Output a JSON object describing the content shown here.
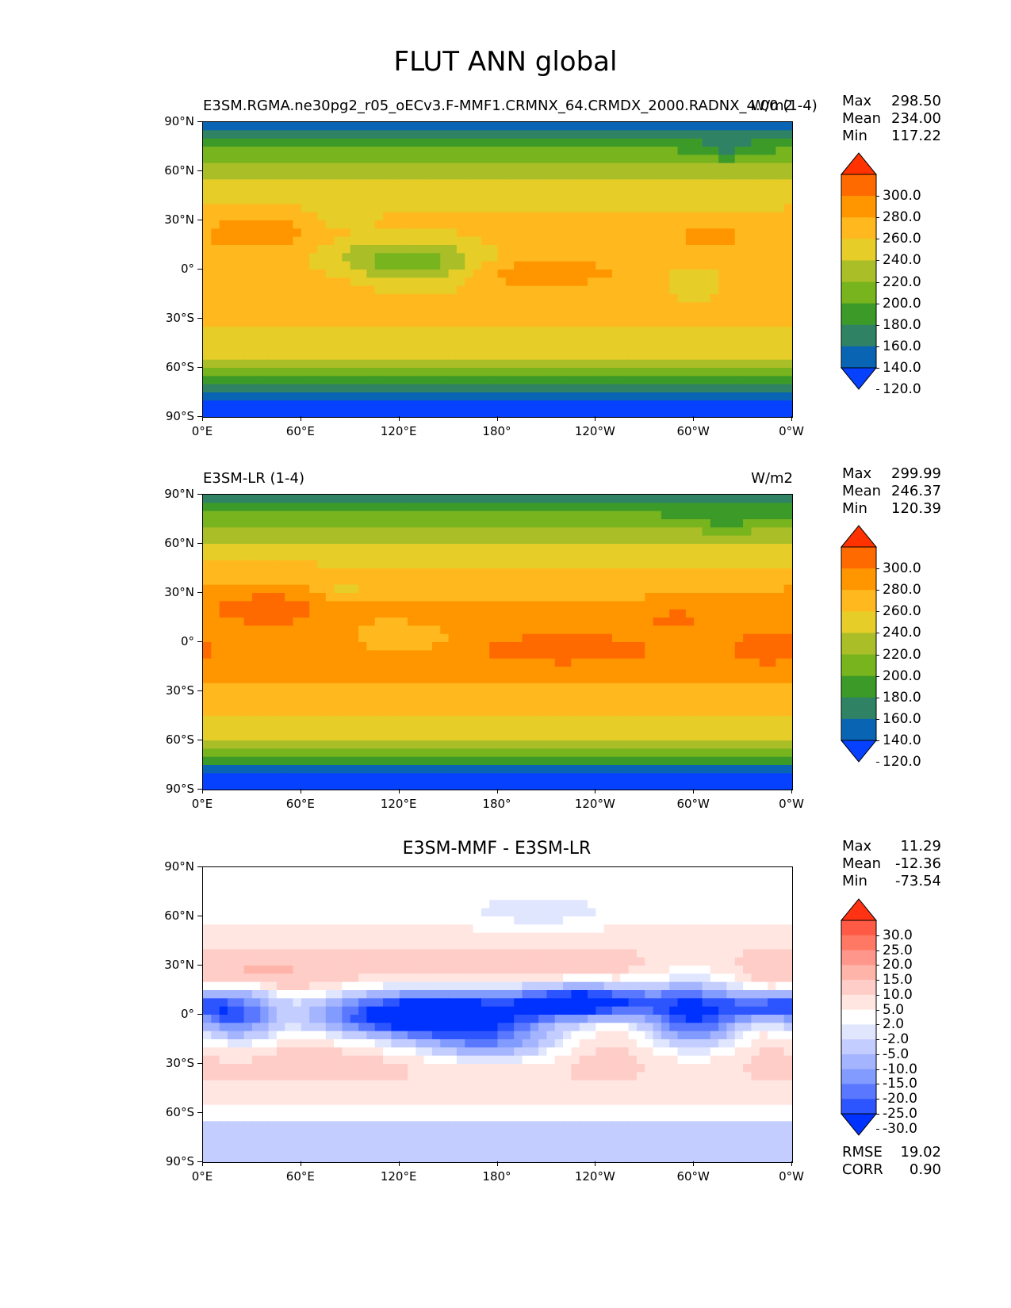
{
  "figure_title": "FLUT ANN global",
  "chart_data": [
    {
      "type": "heatmap",
      "panel": "test",
      "title_left": "E3SM.RGMA.ne30pg2_r05_oECv3.F-MMF1.CRMNX_64.CRMDX_2000.RADNX_4.00 (1-4)",
      "title_right": "W/m2",
      "stats": {
        "max_label": "Max",
        "max": "298.50",
        "mean_label": "Mean",
        "mean": "234.00",
        "min_label": "Min",
        "min": "117.22"
      },
      "colorbar_levels": [
        "300.0",
        "280.0",
        "260.0",
        "240.0",
        "220.0",
        "200.0",
        "180.0",
        "160.0",
        "140.0",
        "120.0"
      ],
      "colorbar_colors": [
        "#ff3200",
        "#ff6a00",
        "#ff9600",
        "#ffb91e",
        "#e6cd28",
        "#aabe28",
        "#78b41e",
        "#3c9b28",
        "#2f8264",
        "#0a64b4",
        "#0541ff"
      ],
      "xlabel": "",
      "ylabel": "",
      "xticks": [
        "0°E",
        "60°E",
        "120°E",
        "180°",
        "120°W",
        "60°W",
        "0°W"
      ],
      "yticks": [
        "90°N",
        "60°N",
        "30°N",
        "0°",
        "30°S",
        "60°S",
        "90°S"
      ],
      "xlim": [
        0,
        360
      ],
      "ylim": [
        -90,
        90
      ],
      "field": "flut_test"
    },
    {
      "type": "heatmap",
      "panel": "reference",
      "title_left": "E3SM-LR (1-4)",
      "title_right": "W/m2",
      "stats": {
        "max_label": "Max",
        "max": "299.99",
        "mean_label": "Mean",
        "mean": "246.37",
        "min_label": "Min",
        "min": "120.39"
      },
      "colorbar_levels": [
        "300.0",
        "280.0",
        "260.0",
        "240.0",
        "220.0",
        "200.0",
        "180.0",
        "160.0",
        "140.0",
        "120.0"
      ],
      "colorbar_colors": [
        "#ff3200",
        "#ff6a00",
        "#ff9600",
        "#ffb91e",
        "#e6cd28",
        "#aabe28",
        "#78b41e",
        "#3c9b28",
        "#2f8264",
        "#0a64b4",
        "#0541ff"
      ],
      "xlabel": "",
      "ylabel": "",
      "xticks": [
        "0°E",
        "60°E",
        "120°E",
        "180°",
        "120°W",
        "60°W",
        "0°W"
      ],
      "yticks": [
        "90°N",
        "60°N",
        "30°N",
        "0°",
        "30°S",
        "60°S",
        "90°S"
      ],
      "xlim": [
        0,
        360
      ],
      "ylim": [
        -90,
        90
      ],
      "field": "flut_ref"
    },
    {
      "type": "heatmap",
      "panel": "difference",
      "title_center": "E3SM-MMF - E3SM-LR",
      "stats": {
        "max_label": "Max",
        "max": "11.29",
        "mean_label": "Mean",
        "mean": "-12.36",
        "min_label": "Min",
        "min": "-73.54"
      },
      "metrics": {
        "rmse_label": "RMSE",
        "rmse": "19.02",
        "corr_label": "CORR",
        "corr": "0.90"
      },
      "colorbar_levels": [
        "30.0",
        "25.0",
        "20.0",
        "15.0",
        "10.0",
        "5.0",
        "2.0",
        "-2.0",
        "-5.0",
        "-10.0",
        "-15.0",
        "-20.0",
        "-25.0",
        "-30.0"
      ],
      "colorbar_colors": [
        "#ff3214",
        "#ff5a46",
        "#ff7864",
        "#ff968c",
        "#ffb4aa",
        "#ffcdc8",
        "#ffe6e1",
        "#ffffff",
        "#e1e6ff",
        "#c3cdff",
        "#a5b4ff",
        "#829bff",
        "#5a78ff",
        "#2d55ff",
        "#0032ff"
      ],
      "xlabel": "",
      "ylabel": "",
      "xticks": [
        "0°E",
        "60°E",
        "120°E",
        "180°",
        "120°W",
        "60°W",
        "0°W"
      ],
      "yticks": [
        "90°N",
        "60°N",
        "30°N",
        "0°",
        "30°S",
        "60°S",
        "90°S"
      ],
      "xlim": [
        0,
        360
      ],
      "ylim": [
        -90,
        90
      ],
      "field": "flut_diff"
    }
  ]
}
